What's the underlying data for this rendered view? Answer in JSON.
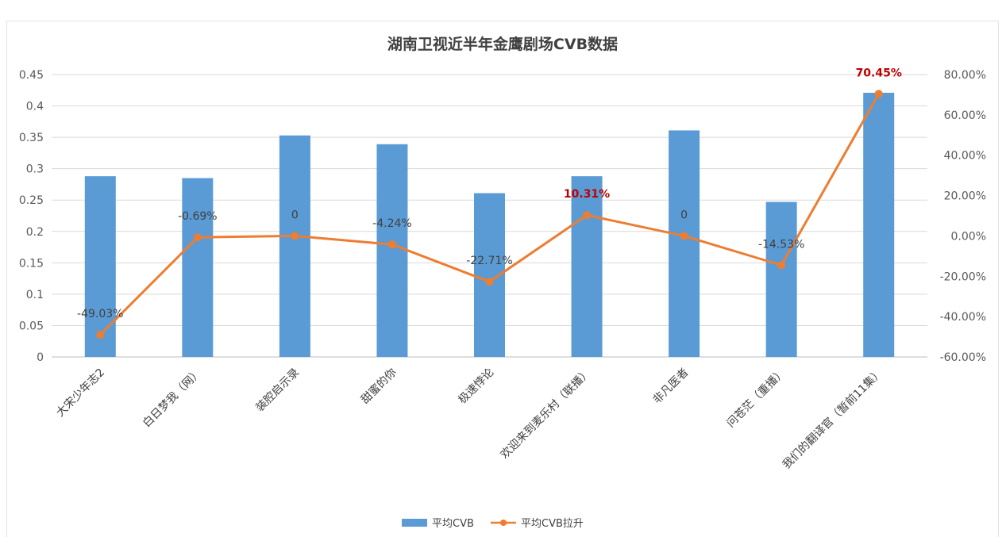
{
  "chart_data": {
    "type": "bar",
    "title": "湖南卫视近半年金鹰剧场CVB数据",
    "categories": [
      "大宋少年志2",
      "白日梦我（网）",
      "装腔启示录",
      "甜蜜的你",
      "极速悖论",
      "欢迎来到麦乐村（联播）",
      "非凡医者",
      "问苍茫（重播）",
      "我们的翻译官（暂前11集）"
    ],
    "series": [
      {
        "name": "平均CVB",
        "type": "bar",
        "axis": "left",
        "color": "#5b9bd5",
        "values": [
          0.288,
          0.285,
          0.353,
          0.339,
          0.261,
          0.288,
          0.361,
          0.247,
          0.421
        ]
      },
      {
        "name": "平均CVB拉升",
        "type": "line",
        "axis": "right",
        "color": "#ed7d31",
        "values": [
          -49.03,
          -0.69,
          0,
          -4.24,
          -22.71,
          10.31,
          0,
          -14.53,
          70.45
        ],
        "labels": [
          "-49.03%",
          "-0.69%",
          "0",
          "-4.24%",
          "-22.71%",
          "10.31%",
          "0",
          "-14.53%",
          "70.45%"
        ],
        "highlight_color": "#c00000",
        "highlight_indices": [
          5,
          8
        ]
      }
    ],
    "y_left": {
      "min": 0,
      "max": 0.45,
      "ticks": [
        0,
        0.05,
        0.1,
        0.15,
        0.2,
        0.25,
        0.3,
        0.35,
        0.4,
        0.45
      ],
      "tick_labels": [
        "0",
        "0.05",
        "0.1",
        "0.15",
        "0.2",
        "0.25",
        "0.3",
        "0.35",
        "0.4",
        "0.45"
      ]
    },
    "y_right": {
      "min": -60,
      "max": 80,
      "ticks": [
        -60,
        -40,
        -20,
        0,
        20,
        40,
        60,
        80
      ],
      "tick_labels": [
        "-60.00%",
        "-40.00%",
        "-20.00%",
        "0.00%",
        "20.00%",
        "40.00%",
        "60.00%",
        "80.00%"
      ]
    },
    "grid": true,
    "legend_position": "bottom"
  }
}
